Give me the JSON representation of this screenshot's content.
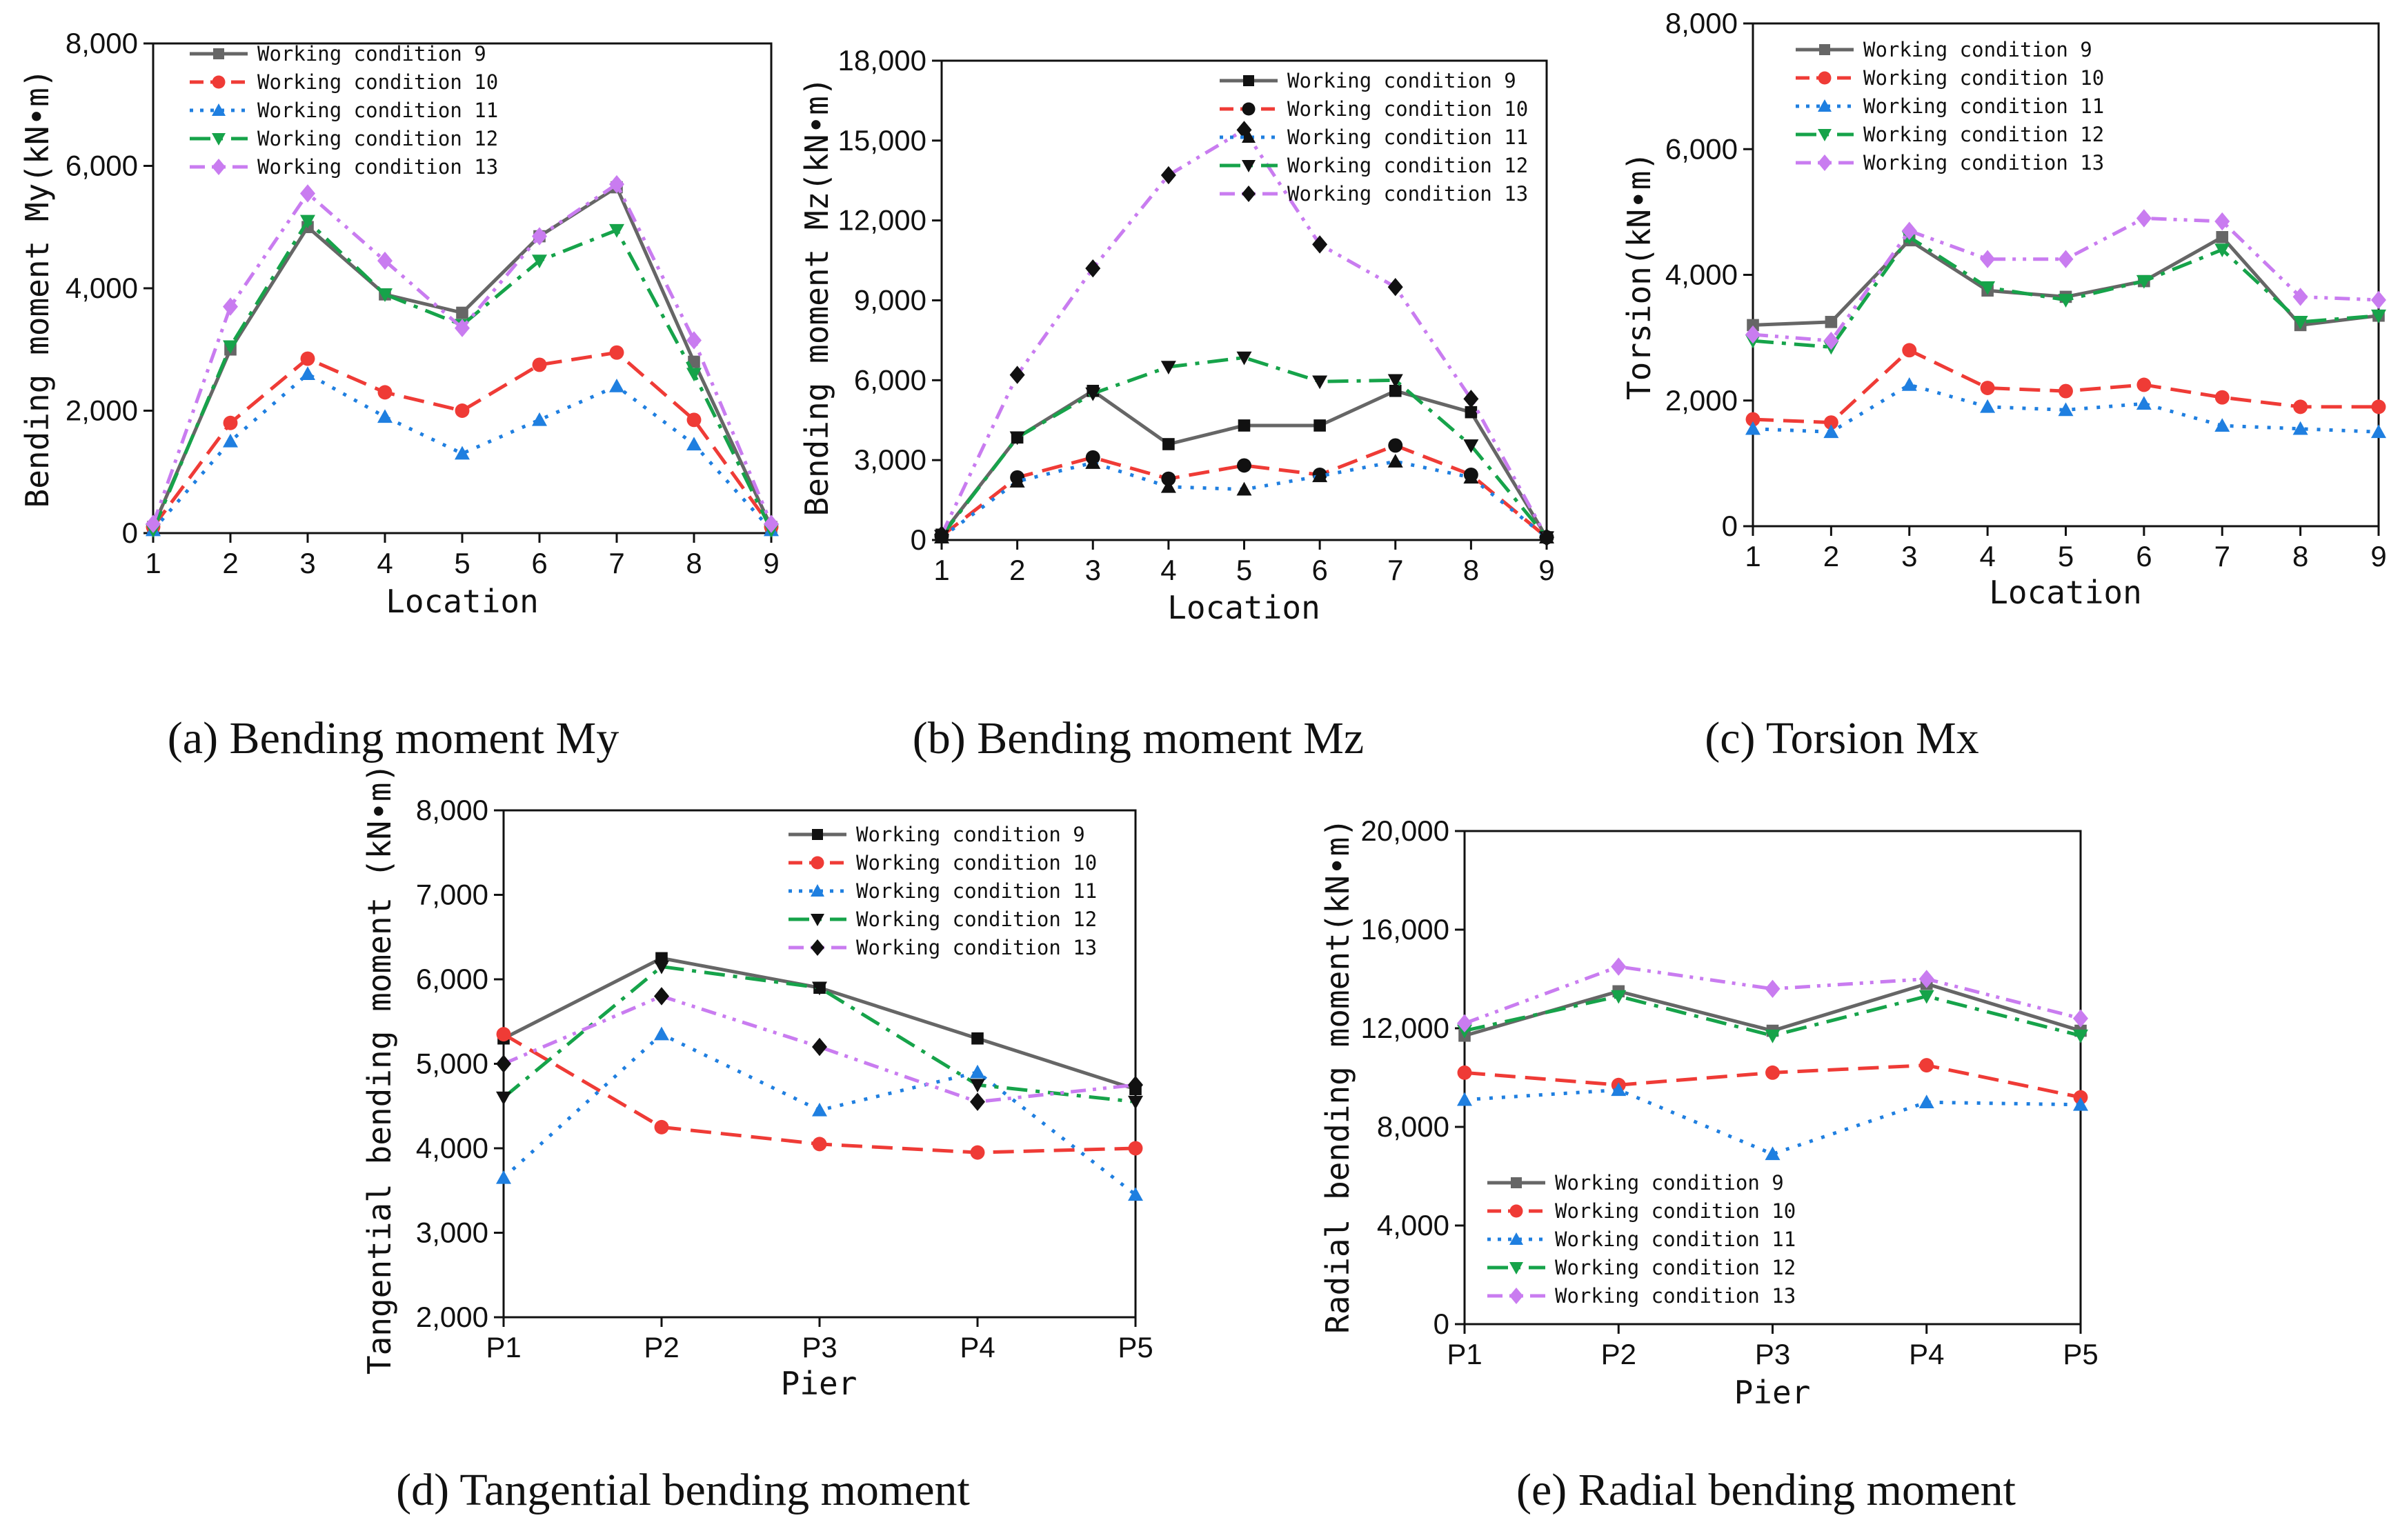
{
  "colors": {
    "wc9": "#666666",
    "wc10": "#ef3b36",
    "wc11": "#1f7fe0",
    "wc12": "#16a34a",
    "wc13": "#c97cf0",
    "black": "#111111"
  },
  "chart_data": [
    {
      "id": "a",
      "type": "line",
      "title": "(a) Bending moment My",
      "xlabel": "Location",
      "ylabel": "Bending moment My(kN•m)",
      "categories": [
        "1",
        "2",
        "3",
        "4",
        "5",
        "6",
        "7",
        "8",
        "9"
      ],
      "ylim": [
        0,
        8000
      ],
      "yticks": [
        0,
        2000,
        4000,
        6000,
        8000
      ],
      "ytick_labels": [
        "0",
        "2,000",
        "4,000",
        "6,000",
        "8,000"
      ],
      "legend_position": "top-left",
      "marker_colors": "colored",
      "series": [
        {
          "name": "Working condition 9",
          "values": [
            100,
            3000,
            5000,
            3900,
            3600,
            4850,
            5650,
            2800,
            100
          ]
        },
        {
          "name": "Working condition 10",
          "values": [
            100,
            1800,
            2850,
            2300,
            2000,
            2750,
            2950,
            1850,
            100
          ]
        },
        {
          "name": "Working condition 11",
          "values": [
            50,
            1500,
            2600,
            1900,
            1300,
            1850,
            2400,
            1450,
            50
          ]
        },
        {
          "name": "Working condition 12",
          "values": [
            50,
            3050,
            5100,
            3900,
            3400,
            4450,
            4950,
            2600,
            50
          ]
        },
        {
          "name": "Working condition 13",
          "values": [
            150,
            3700,
            5550,
            4450,
            3350,
            4850,
            5700,
            3150,
            150
          ]
        }
      ]
    },
    {
      "id": "b",
      "type": "line",
      "title": "(b) Bending moment Mz",
      "xlabel": "Location",
      "ylabel": "Bending moment Mz(kN•m)",
      "categories": [
        "1",
        "2",
        "3",
        "4",
        "5",
        "6",
        "7",
        "8",
        "9"
      ],
      "ylim": [
        0,
        18000
      ],
      "yticks": [
        0,
        3000,
        6000,
        9000,
        12000,
        15000,
        18000
      ],
      "ytick_labels": [
        "0",
        "3,000",
        "6,000",
        "9,000",
        "12,000",
        "15,000",
        "18,000"
      ],
      "legend_position": "top-right",
      "marker_colors": "black",
      "series": [
        {
          "name": "Working condition 9",
          "values": [
            200,
            3850,
            5600,
            3600,
            4300,
            4300,
            5600,
            4800,
            100
          ]
        },
        {
          "name": "Working condition 10",
          "values": [
            150,
            2350,
            3100,
            2300,
            2800,
            2450,
            3550,
            2450,
            100
          ]
        },
        {
          "name": "Working condition 11",
          "values": [
            100,
            2200,
            2900,
            2000,
            1900,
            2400,
            2950,
            2350,
            100
          ]
        },
        {
          "name": "Working condition 12",
          "values": [
            150,
            3850,
            5500,
            6500,
            6850,
            5950,
            6000,
            3550,
            100
          ]
        },
        {
          "name": "Working condition 13",
          "values": [
            200,
            6200,
            10200,
            13700,
            15400,
            11100,
            9500,
            5300,
            100
          ]
        }
      ]
    },
    {
      "id": "c",
      "type": "line",
      "title": "(c) Torsion Mx",
      "xlabel": "Location",
      "ylabel": "Torsion(kN•m)",
      "categories": [
        "1",
        "2",
        "3",
        "4",
        "5",
        "6",
        "7",
        "8",
        "9"
      ],
      "ylim": [
        0,
        8000
      ],
      "yticks": [
        0,
        2000,
        4000,
        6000,
        8000
      ],
      "ytick_labels": [
        "0",
        "2,000",
        "4,000",
        "6,000",
        "8,000"
      ],
      "legend_position": "top-left",
      "marker_colors": "colored",
      "series": [
        {
          "name": "Working condition 9",
          "values": [
            3200,
            3250,
            4550,
            3750,
            3650,
            3900,
            4600,
            3200,
            3350
          ]
        },
        {
          "name": "Working condition 10",
          "values": [
            1700,
            1650,
            2800,
            2200,
            2150,
            2250,
            2050,
            1900,
            1900
          ]
        },
        {
          "name": "Working condition 11",
          "values": [
            1550,
            1500,
            2250,
            1900,
            1850,
            1950,
            1600,
            1550,
            1500
          ]
        },
        {
          "name": "Working condition 12",
          "values": [
            2950,
            2850,
            4600,
            3800,
            3600,
            3900,
            4400,
            3250,
            3350
          ]
        },
        {
          "name": "Working condition 13",
          "values": [
            3050,
            2950,
            4700,
            4250,
            4250,
            4900,
            4850,
            3650,
            3600
          ]
        }
      ]
    },
    {
      "id": "d",
      "type": "line",
      "title": "(d) Tangential bending moment",
      "xlabel": "Pier",
      "ylabel": "Tangential bending moment (kN•m)",
      "categories": [
        "P1",
        "P2",
        "P3",
        "P4",
        "P5"
      ],
      "ylim": [
        2000,
        8000
      ],
      "yticks": [
        2000,
        3000,
        4000,
        5000,
        6000,
        7000,
        8000
      ],
      "ytick_labels": [
        "2,000",
        "3,000",
        "4,000",
        "5,000",
        "6,000",
        "7,000",
        "8,000"
      ],
      "legend_position": "top-right",
      "marker_colors": "mixed",
      "series": [
        {
          "name": "Working condition 9",
          "values": [
            5300,
            6250,
            5900,
            5300,
            4700
          ]
        },
        {
          "name": "Working condition 10",
          "values": [
            5350,
            4250,
            4050,
            3950,
            4000
          ]
        },
        {
          "name": "Working condition 11",
          "values": [
            3650,
            5350,
            4450,
            4900,
            3450
          ]
        },
        {
          "name": "Working condition 12",
          "values": [
            4600,
            6150,
            5900,
            4750,
            4550
          ]
        },
        {
          "name": "Working condition 13",
          "values": [
            5000,
            5800,
            5200,
            4550,
            4750
          ]
        }
      ]
    },
    {
      "id": "e",
      "type": "line",
      "title": "(e) Radial bending moment",
      "xlabel": "Pier",
      "ylabel": "Radial bending moment(kN•m)",
      "categories": [
        "P1",
        "P2",
        "P3",
        "P4",
        "P5"
      ],
      "ylim": [
        0,
        20000
      ],
      "yticks": [
        0,
        4000,
        8000,
        12000,
        16000,
        20000
      ],
      "ytick_labels": [
        "0",
        "4,000",
        "8,000",
        "12,000",
        "16,000",
        "20,000"
      ],
      "legend_position": "bottom-left",
      "marker_colors": "colored",
      "series": [
        {
          "name": "Working condition 9",
          "values": [
            11700,
            13500,
            11900,
            13800,
            11900
          ]
        },
        {
          "name": "Working condition 10",
          "values": [
            10200,
            9700,
            10200,
            10500,
            9200
          ]
        },
        {
          "name": "Working condition 11",
          "values": [
            9100,
            9500,
            6900,
            9000,
            8900
          ]
        },
        {
          "name": "Working condition 12",
          "values": [
            11900,
            13300,
            11700,
            13300,
            11700
          ]
        },
        {
          "name": "Working condition 13",
          "values": [
            12200,
            14500,
            13600,
            14000,
            12400
          ]
        }
      ]
    }
  ]
}
